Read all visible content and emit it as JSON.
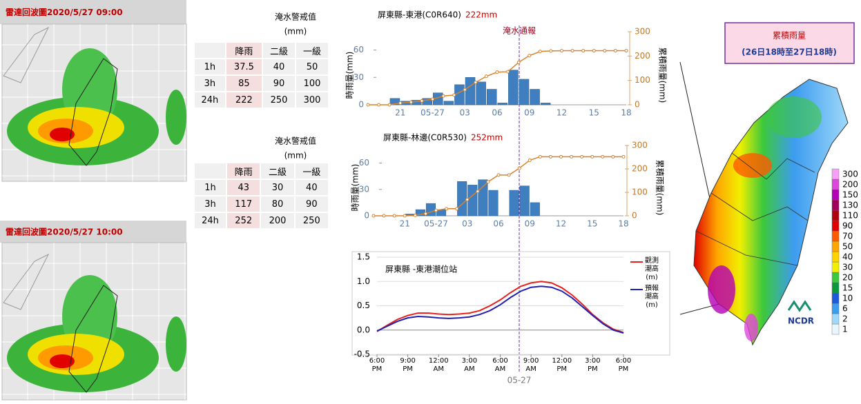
{
  "radar": [
    {
      "title": "雷達回波圖2020/5/27 09:00"
    },
    {
      "title": "雷達回波圖2020/5/27 10:00"
    }
  ],
  "tables": [
    {
      "title": "淹水警戒值",
      "unit": "(mm)",
      "header": [
        "降雨",
        "二級",
        "一級"
      ],
      "rows": [
        [
          "1h",
          37.5,
          40,
          50
        ],
        [
          "3h",
          85,
          90,
          100
        ],
        [
          "24h",
          222,
          250,
          300
        ]
      ]
    },
    {
      "title": "淹水警戒值",
      "unit": "(mm)",
      "header": [
        "降雨",
        "二級",
        "一級"
      ],
      "rows": [
        [
          "1h",
          43,
          30,
          40
        ],
        [
          "3h",
          117,
          80,
          90
        ],
        [
          "24h",
          252,
          200,
          250
        ]
      ]
    }
  ],
  "chart_data": [
    {
      "type": "bar",
      "title": "屏東縣-東港(C0R640)",
      "total": "222mm",
      "annotation": "淹水通報",
      "ylabel": "時雨量(mm)",
      "y2label": "累積雨量(mm)",
      "categories": [
        null,
        null,
        null,
        "21",
        null,
        null,
        "05-27",
        null,
        null,
        "03",
        null,
        null,
        "06",
        null,
        null,
        "09",
        null,
        null,
        "12",
        null,
        null,
        "15",
        null,
        null,
        "18"
      ],
      "series": [
        {
          "type": "bar",
          "color": "#3f7fbf",
          "values": [
            0,
            0,
            0,
            7,
            4,
            5,
            7,
            13,
            4,
            22,
            30,
            25,
            17,
            2,
            38,
            28,
            17,
            2,
            0,
            0,
            0,
            0,
            0,
            0,
            0
          ]
        },
        {
          "type": "line",
          "axis": "y2",
          "color": "#d9822b",
          "values": [
            0,
            0,
            0,
            7,
            11,
            16,
            23,
            36,
            40,
            62,
            92,
            117,
            134,
            136,
            174,
            202,
            219,
            221,
            222,
            222,
            222,
            222,
            222,
            222,
            222
          ]
        }
      ],
      "ylim": [
        0,
        80
      ],
      "yticks": [
        0,
        30,
        60
      ],
      "y2lim": [
        0,
        300
      ],
      "y2ticks": [
        0,
        100,
        200,
        300
      ]
    },
    {
      "type": "bar",
      "title": "屏東縣-林邊(C0R530)",
      "total": "252mm",
      "ylabel": "時雨量(mm)",
      "y2label": "累積雨量(mm)",
      "categories": [
        null,
        null,
        null,
        "21",
        null,
        null,
        "05-27",
        null,
        null,
        "03",
        null,
        null,
        "06",
        null,
        null,
        "09",
        null,
        null,
        "12",
        null,
        null,
        "15",
        null,
        null,
        "18"
      ],
      "series": [
        {
          "type": "bar",
          "color": "#3f7fbf",
          "values": [
            0,
            0,
            0,
            0,
            2,
            7,
            14,
            7,
            0,
            39,
            35,
            41,
            29,
            0,
            29,
            34,
            15,
            0,
            0,
            0,
            0,
            0,
            0,
            0,
            0
          ]
        },
        {
          "type": "line",
          "axis": "y2",
          "color": "#d9822b",
          "values": [
            0,
            0,
            0,
            0,
            2,
            9,
            23,
            30,
            30,
            69,
            104,
            145,
            174,
            174,
            203,
            237,
            252,
            252,
            252,
            252,
            252,
            252,
            252,
            252,
            252
          ]
        }
      ],
      "ylim": [
        0,
        80
      ],
      "yticks": [
        0,
        30,
        60
      ],
      "y2lim": [
        0,
        300
      ],
      "y2ticks": [
        0,
        100,
        200,
        300
      ]
    },
    {
      "type": "line",
      "title": "屏東縣 -東港潮位站",
      "xlabel": "05-27",
      "grid": true,
      "categories": [
        "6:00 PM",
        null,
        null,
        "9:00 PM",
        null,
        null,
        "12:00 AM",
        null,
        null,
        "3:00 AM",
        null,
        null,
        "6:00 AM",
        null,
        null,
        "9:00 AM",
        null,
        null,
        "12:00 PM",
        null,
        null,
        "3:00 PM",
        null,
        null,
        "6:00 PM"
      ],
      "series": [
        {
          "name": "觀測潮高(m)",
          "color": "#e8201c",
          "values": [
            -0.03,
            0.1,
            0.22,
            0.3,
            0.35,
            0.35,
            0.33,
            0.32,
            0.33,
            0.35,
            0.4,
            0.5,
            0.62,
            0.77,
            0.9,
            0.97,
            1.0,
            0.97,
            0.87,
            0.72,
            0.53,
            0.32,
            0.15,
            0.02,
            -0.05
          ]
        },
        {
          "name": "預報潮高(m)",
          "color": "#1f1fb4",
          "values": [
            -0.02,
            0.08,
            0.18,
            0.25,
            0.28,
            0.27,
            0.25,
            0.24,
            0.25,
            0.27,
            0.32,
            0.4,
            0.52,
            0.67,
            0.8,
            0.88,
            0.9,
            0.88,
            0.8,
            0.66,
            0.48,
            0.3,
            0.13,
            0.0,
            -0.06
          ]
        }
      ],
      "ylim": [
        -0.5,
        1.5
      ],
      "yticks": [
        -0.5,
        {
          "value": 0,
          "label": "0.0"
        },
        0.5,
        {
          "value": 1,
          "label": "1.0"
        },
        1.5
      ]
    }
  ],
  "map": {
    "title": "累積雨量",
    "subtitle": "(26日18時至27日18時)",
    "logo": "NCDR",
    "legend": {
      "labels": [
        1,
        2,
        6,
        10,
        15,
        20,
        30,
        40,
        50,
        70,
        90,
        110,
        130,
        150,
        200,
        300
      ],
      "colors": [
        "#e8f6ff",
        "#9fd8f8",
        "#3c9cf0",
        "#1e5adc",
        "#0a9a3c",
        "#3cc83c",
        "#f0f000",
        "#ffd200",
        "#ffa500",
        "#ff5a00",
        "#e00000",
        "#b00010",
        "#a0005a",
        "#b400b4",
        "#dc46dc",
        "#f5a0f5"
      ]
    }
  }
}
